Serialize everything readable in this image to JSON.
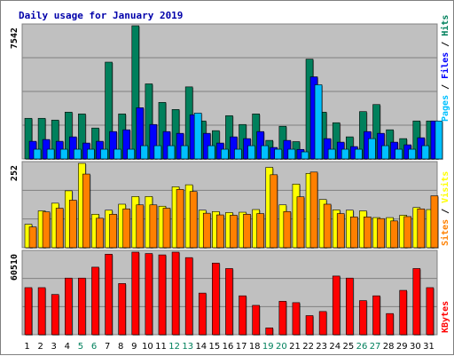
{
  "title": "Daily usage for January 2019",
  "colors": {
    "panel_bg": "#c0c0c0",
    "hits": "#00805c",
    "files": "#0000ff",
    "pages": "#00c0ff",
    "visits": "#ffff00",
    "sites": "#ff8000",
    "kbytes": "#ff0000",
    "weekend_label": "#00805c",
    "weekday_label": "#000000",
    "title": "#0000aa"
  },
  "chart_data": [
    {
      "type": "bar",
      "panel": "hits-files-pages",
      "categories": [
        "1",
        "2",
        "3",
        "4",
        "5",
        "6",
        "7",
        "8",
        "9",
        "10",
        "11",
        "12",
        "13",
        "14",
        "15",
        "16",
        "17",
        "18",
        "19",
        "20",
        "21",
        "22",
        "23",
        "24",
        "25",
        "26",
        "27",
        "28",
        "29",
        "30",
        "31"
      ],
      "weekend_days": [
        "5",
        "6",
        "12",
        "13",
        "19",
        "20",
        "26",
        "27"
      ],
      "ymax_label": "7542",
      "ylim": [
        0,
        7542
      ],
      "series": [
        {
          "name": "Hits",
          "color": "#00805c",
          "values": [
            2300,
            2300,
            2200,
            2650,
            2550,
            1750,
            5480,
            2550,
            7542,
            4250,
            3200,
            2800,
            4080,
            2150,
            1600,
            2450,
            1950,
            2550,
            1050,
            1850,
            980,
            5650,
            2650,
            2050,
            1250,
            2680,
            3080,
            1650,
            1150,
            2150,
            2150
          ]
        },
        {
          "name": "Files",
          "color": "#0000ff",
          "values": [
            1000,
            1100,
            1000,
            1250,
            900,
            1000,
            1550,
            1650,
            2900,
            1950,
            1550,
            1450,
            2500,
            1450,
            900,
            1250,
            1150,
            1550,
            650,
            1050,
            540,
            4650,
            1150,
            950,
            700,
            1550,
            1450,
            950,
            800,
            1200,
            2150
          ]
        },
        {
          "name": "Pages",
          "color": "#00c0ff",
          "values": [
            550,
            550,
            550,
            550,
            550,
            550,
            550,
            550,
            750,
            750,
            750,
            750,
            2600,
            750,
            550,
            550,
            750,
            750,
            550,
            550,
            400,
            4200,
            550,
            550,
            550,
            1150,
            750,
            550,
            550,
            750,
            2150
          ]
        }
      ]
    },
    {
      "type": "bar",
      "panel": "visits-sites",
      "categories": [
        "1",
        "2",
        "3",
        "4",
        "5",
        "6",
        "7",
        "8",
        "9",
        "10",
        "11",
        "12",
        "13",
        "14",
        "15",
        "16",
        "17",
        "18",
        "19",
        "20",
        "21",
        "22",
        "23",
        "24",
        "25",
        "26",
        "27",
        "28",
        "29",
        "30",
        "31"
      ],
      "ymax_label": "252",
      "ylim": [
        0,
        252
      ],
      "series": [
        {
          "name": "Visits",
          "color": "#ffff00",
          "values": [
            70,
            110,
            133,
            170,
            252,
            100,
            112,
            130,
            153,
            153,
            124,
            182,
            188,
            112,
            108,
            105,
            106,
            114,
            240,
            128,
            190,
            222,
            144,
            113,
            112,
            110,
            90,
            90,
            97,
            120,
            114
          ]
        },
        {
          "name": "Sites",
          "color": "#ff8000",
          "values": [
            62,
            107,
            118,
            142,
            220,
            88,
            100,
            116,
            128,
            128,
            118,
            174,
            168,
            103,
            98,
            97,
            100,
            102,
            218,
            108,
            152,
            226,
            130,
            102,
            92,
            92,
            87,
            80,
            93,
            116,
            155
          ]
        }
      ]
    },
    {
      "type": "bar",
      "panel": "kbytes",
      "categories": [
        "1",
        "2",
        "3",
        "4",
        "5",
        "6",
        "7",
        "8",
        "9",
        "10",
        "11",
        "12",
        "13",
        "14",
        "15",
        "16",
        "17",
        "18",
        "19",
        "20",
        "21",
        "22",
        "23",
        "24",
        "25",
        "26",
        "27",
        "28",
        "29",
        "30",
        "31"
      ],
      "ymax_label": "60510",
      "ylim": [
        0,
        60510
      ],
      "series": [
        {
          "name": "KBytes",
          "color": "#ff0000",
          "values": [
            34500,
            34500,
            29500,
            41500,
            41500,
            49500,
            59000,
            37500,
            60510,
            59500,
            58500,
            60510,
            56500,
            30500,
            52500,
            48500,
            28500,
            21500,
            5000,
            24500,
            23500,
            14000,
            17000,
            43000,
            41500,
            25000,
            28500,
            15500,
            32500,
            48500,
            34500
          ]
        }
      ]
    }
  ],
  "axis_labels": {
    "top_right": [
      {
        "text": "Pages",
        "color": "#00c0ff"
      },
      {
        "text": " / ",
        "color": "#000000"
      },
      {
        "text": "Files",
        "color": "#0000ff"
      },
      {
        "text": " / ",
        "color": "#000000"
      },
      {
        "text": "Hits",
        "color": "#00805c"
      }
    ],
    "middle_right": [
      {
        "text": "Sites",
        "color": "#ff8000"
      },
      {
        "text": " / ",
        "color": "#000000"
      },
      {
        "text": "Visits",
        "color": "#ffff00"
      }
    ],
    "bottom_right": [
      {
        "text": "KBytes",
        "color": "#ff0000"
      }
    ]
  }
}
